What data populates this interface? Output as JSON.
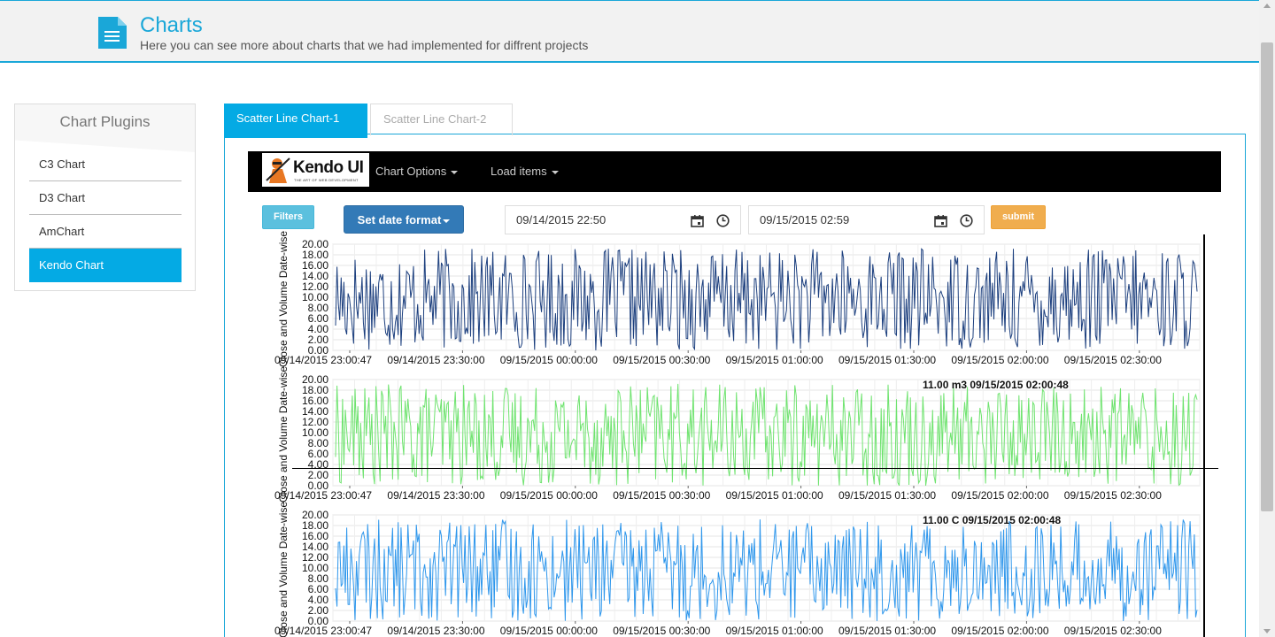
{
  "header": {
    "title": "Charts",
    "subtitle": "Here you can see more about charts that we had implemented for diffrent projects",
    "icon": "document-icon",
    "accent": "#1aa7d8"
  },
  "sidebar": {
    "heading": "Chart Plugins",
    "items": [
      {
        "label": "C3 Chart",
        "active": false
      },
      {
        "label": "D3 Chart",
        "active": false
      },
      {
        "label": "AmChart",
        "active": false
      },
      {
        "label": "Kendo Chart",
        "active": true
      }
    ]
  },
  "tabs": [
    {
      "label": "Scatter Line Chart-1",
      "active": true
    },
    {
      "label": "Scatter Line Chart-2",
      "active": false
    }
  ],
  "navbar": {
    "brand": "Kendo UI",
    "tagline": "THE ART OF WEB DEVELOPMENT",
    "menu": [
      "Chart Options",
      "Load items"
    ]
  },
  "toolbar": {
    "filters_label": "Filters",
    "date_format_label": "Set date format",
    "start_date": "09/14/2015 22:50",
    "end_date": "09/15/2015 02:59",
    "submit_label": "submit"
  },
  "chart_data": [
    {
      "type": "line",
      "ylabel": "Close and Volume Date-wise",
      "ylim": [
        0,
        20
      ],
      "y_ticks": [
        "20.00",
        "18.00",
        "16.00",
        "14.00",
        "12.00",
        "10.00",
        "8.00",
        "6.00",
        "4.00",
        "2.00",
        "0.00"
      ],
      "x_ticks": [
        "09/14/2015 23:00:47",
        "09/14/2015 23:30:00",
        "09/15/2015 00:00:00",
        "09/15/2015 00:30:00",
        "09/15/2015 01:00:00",
        "09/15/2015 01:30:00",
        "09/15/2015 02:00:00",
        "09/15/2015 02:30:00"
      ],
      "value_range": [
        0,
        19.2
      ],
      "color": "#1c3f7e",
      "grid": true,
      "tooltip": ""
    },
    {
      "type": "line",
      "ylabel": "Close and Volume Date-wise",
      "ylim": [
        0,
        20
      ],
      "y_ticks": [
        "20.00",
        "18.00",
        "16.00",
        "14.00",
        "12.00",
        "10.00",
        "8.00",
        "6.00",
        "4.00",
        "2.00",
        "0.00"
      ],
      "x_ticks": [
        "09/14/2015 23:00:47",
        "09/14/2015 23:30:00",
        "09/15/2015 00:00:00",
        "09/15/2015 00:30:00",
        "09/15/2015 01:00:00",
        "09/15/2015 01:30:00",
        "09/15/2015 02:00:00",
        "09/15/2015 02:30:00"
      ],
      "value_range": [
        0,
        19.2
      ],
      "color": "#6fe36f",
      "grid": true,
      "tooltip": "11.00 m3  09/15/2015 02:00:48"
    },
    {
      "type": "line",
      "ylabel": "Close and Volume Date-wise",
      "ylim": [
        0,
        20
      ],
      "y_ticks": [
        "20.00",
        "18.00",
        "16.00",
        "14.00",
        "12.00",
        "10.00",
        "8.00",
        "6.00",
        "4.00",
        "2.00",
        "0.00"
      ],
      "x_ticks": [
        "09/14/2015 23:00:47",
        "09/14/2015 23:30:00",
        "09/15/2015 00:00:00",
        "09/15/2015 00:30:00",
        "09/15/2015 01:00:00",
        "09/15/2015 01:30:00",
        "09/15/2015 02:00:00",
        "09/15/2015 02:30:00"
      ],
      "value_range": [
        0,
        19.2
      ],
      "color": "#2f97ec",
      "grid": true,
      "tooltip": "11.00 C  09/15/2015 02:00:48"
    }
  ]
}
